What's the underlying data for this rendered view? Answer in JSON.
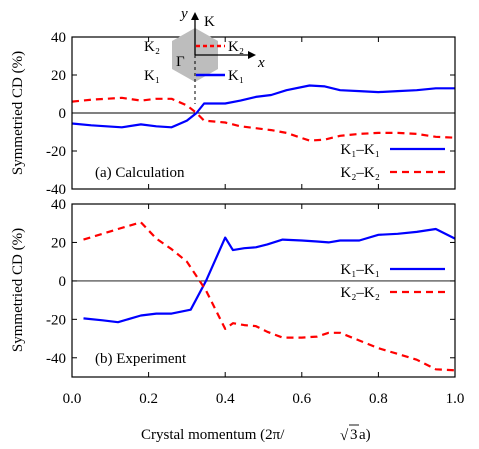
{
  "chart_data": [
    {
      "type": "line",
      "annotation": "(a) Calculation",
      "ylabel": "Symmetried CD (%)",
      "ylim": [
        -40,
        40
      ],
      "yticks": [
        -40,
        -20,
        0,
        20,
        40
      ],
      "xlim": [
        0,
        1
      ],
      "grid": false,
      "legend": "bottom-right",
      "series": [
        {
          "name": "K1–K1",
          "legend_label": "K₁–K₁",
          "color": "#0000ff",
          "style": "solid",
          "x": [
            0,
            0.05,
            0.13,
            0.18,
            0.22,
            0.26,
            0.3,
            0.325,
            0.345,
            0.4,
            0.44,
            0.48,
            0.52,
            0.56,
            0.62,
            0.66,
            0.7,
            0.75,
            0.8,
            0.85,
            0.9,
            0.95,
            1.0
          ],
          "y": [
            -5.5,
            -6.5,
            -7.5,
            -6,
            -7,
            -7.5,
            -4,
            0,
            5,
            5,
            6.5,
            8.5,
            9.5,
            12,
            14.5,
            14,
            12,
            11.5,
            11,
            11.5,
            12,
            13,
            13
          ]
        },
        {
          "name": "K2–K2",
          "legend_label": "K₂–K₂",
          "color": "#ff0000",
          "style": "dashed",
          "x": [
            0,
            0.05,
            0.13,
            0.18,
            0.22,
            0.26,
            0.3,
            0.325,
            0.345,
            0.4,
            0.44,
            0.48,
            0.52,
            0.56,
            0.62,
            0.66,
            0.7,
            0.75,
            0.8,
            0.85,
            0.9,
            0.95,
            1.0
          ],
          "y": [
            6,
            7,
            8,
            6.5,
            7.5,
            7.5,
            4,
            0,
            -4,
            -5,
            -7,
            -8,
            -9,
            -10.5,
            -14.5,
            -14,
            -12,
            -11,
            -10.5,
            -10.5,
            -11,
            -12.5,
            -13
          ]
        }
      ],
      "inset": {
        "description": "hexagonal Brillouin zone with axes",
        "labels": {
          "y_axis": "y",
          "x_axis": "x",
          "center": "Γ",
          "top": "K",
          "k2_left": "K₂",
          "k2_right": "K₂",
          "k1_left": "K₁",
          "k1_right": "K₁"
        },
        "colors": {
          "hexagon": "#bdbdbd",
          "k1": "#0000ff",
          "k2": "#ff0000"
        }
      }
    },
    {
      "type": "line",
      "annotation": "(b) Experiment",
      "ylabel": "Symmetried CD (%)",
      "xlabel_prefix": "Crystal momentum (2π/",
      "xlabel_radicand": "3",
      "xlabel_suffix": "a)",
      "ylim": [
        -50,
        40
      ],
      "yticks": [
        -40,
        -20,
        0,
        20,
        40
      ],
      "xlim": [
        0,
        1
      ],
      "xticks": [
        "0.0",
        "0.2",
        "0.4",
        "0.6",
        "0.8",
        "1.0"
      ],
      "grid": false,
      "legend": "right",
      "series": [
        {
          "name": "K1–K1",
          "legend_label": "K₁–K₁",
          "color": "#0000ff",
          "style": "solid",
          "x": [
            0.03,
            0.08,
            0.12,
            0.18,
            0.22,
            0.26,
            0.31,
            0.35,
            0.4,
            0.42,
            0.45,
            0.48,
            0.51,
            0.55,
            0.6,
            0.64,
            0.67,
            0.7,
            0.75,
            0.8,
            0.85,
            0.9,
            0.95,
            1.0
          ],
          "y": [
            -19.5,
            -20.5,
            -21.5,
            -18,
            -17,
            -17,
            -15,
            0,
            22.5,
            16,
            17,
            17.5,
            19,
            21.5,
            21,
            20.5,
            20,
            21,
            21,
            24,
            24.5,
            25.5,
            27,
            22
          ]
        },
        {
          "name": "K2–K2",
          "legend_label": "K₂–K₂",
          "color": "#ff0000",
          "style": "dashed",
          "x": [
            0.03,
            0.08,
            0.12,
            0.18,
            0.22,
            0.26,
            0.3,
            0.35,
            0.4,
            0.42,
            0.45,
            0.48,
            0.51,
            0.55,
            0.6,
            0.64,
            0.67,
            0.7,
            0.75,
            0.8,
            0.85,
            0.9,
            0.95,
            1.0
          ],
          "y": [
            21.5,
            24.5,
            27,
            30.5,
            22,
            16.5,
            10,
            -5,
            -25,
            -22,
            -23,
            -23.5,
            -26.5,
            -29.5,
            -29.5,
            -29,
            -27,
            -27,
            -31,
            -35,
            -38,
            -41,
            -46,
            -46.5
          ]
        }
      ]
    }
  ]
}
